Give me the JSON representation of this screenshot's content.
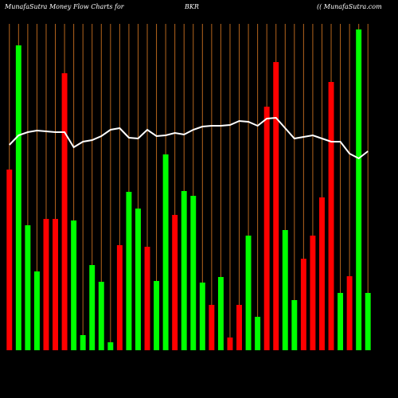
{
  "chart_data": {
    "type": "bar",
    "title": "MunafaSutra  Money Flow  Charts for",
    "subtitle": "BKR",
    "source": "(( MunafaSutra.com",
    "categories": [
      null,
      null,
      null,
      null,
      null,
      null,
      null,
      null,
      null,
      null,
      null,
      null,
      null,
      null,
      null,
      null,
      null,
      null,
      null,
      null,
      null,
      null,
      null,
      null,
      null,
      null,
      null,
      null,
      null,
      null,
      null,
      null,
      null,
      null,
      null,
      null,
      null,
      null,
      null,
      null
    ],
    "values": [
      227,
      383,
      157,
      99,
      165,
      165,
      348,
      163,
      19,
      107,
      86,
      10,
      132,
      199,
      178,
      130,
      87,
      246,
      170,
      200,
      194,
      85,
      57,
      92,
      16,
      57,
      144,
      42,
      306,
      362,
      151,
      63,
      115,
      144,
      192,
      337,
      72,
      93,
      403,
      72
    ],
    "colors": [
      "#ff0000",
      "#00ff00",
      "#00ff00",
      "#00ff00",
      "#ff0000",
      "#ff0000",
      "#ff0000",
      "#00ff00",
      "#00ff00",
      "#00ff00",
      "#00ff00",
      "#00ff00",
      "#ff0000",
      "#00ff00",
      "#00ff00",
      "#ff0000",
      "#00ff00",
      "#00ff00",
      "#ff0000",
      "#00ff00",
      "#00ff00",
      "#00ff00",
      "#ff0000",
      "#00ff00",
      "#ff0000",
      "#ff0000",
      "#00ff00",
      "#00ff00",
      "#ff0000",
      "#ff0000",
      "#00ff00",
      "#00ff00",
      "#ff0000",
      "#ff0000",
      "#ff0000",
      "#ff0000",
      "#00ff00",
      "#ff0000",
      "#00ff00",
      "#00ff00"
    ],
    "line": {
      "color": "#ffffff",
      "values": [
        258,
        270,
        274,
        276,
        275,
        274,
        274,
        255,
        262,
        264,
        269,
        277,
        279,
        267,
        266,
        277,
        269,
        270,
        273,
        271,
        277,
        281,
        282,
        282,
        283,
        288,
        287,
        282,
        291,
        292,
        279,
        266,
        268,
        270,
        266,
        262,
        262,
        247,
        241,
        250
      ]
    },
    "ylim": [
      0,
      410
    ],
    "grid_color": "#b5651d"
  }
}
